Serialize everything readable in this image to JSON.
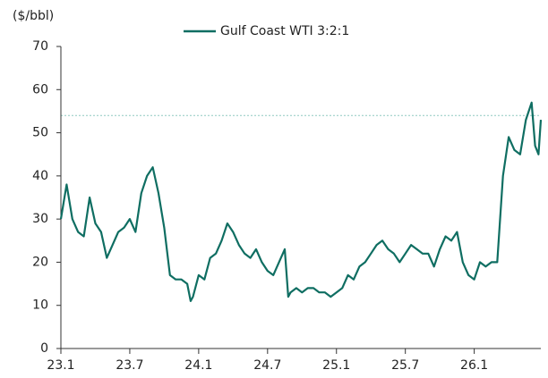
{
  "chart_data": {
    "type": "line",
    "y_label": "($/bbl)",
    "x": [
      0,
      0.5,
      1,
      1.5,
      2,
      2.5,
      3,
      3.5,
      4,
      4.5,
      5,
      5.5,
      6,
      6.5,
      7,
      7.5,
      8,
      8.5,
      9,
      9.5,
      10,
      10.5,
      11,
      11.3,
      11.5,
      12,
      12.5,
      13,
      13.5,
      14,
      14.5,
      15,
      15.5,
      16,
      16.5,
      17,
      17.5,
      18,
      18.5,
      19,
      19.5,
      19.8,
      20,
      20.5,
      21,
      21.5,
      22,
      22.5,
      23,
      23.5,
      24,
      24.5,
      25,
      25.5,
      26,
      26.5,
      27,
      27.5,
      28,
      28.5,
      29,
      29.5,
      30,
      30.5,
      31,
      31.5,
      32,
      32.5,
      33,
      33.5,
      34,
      34.5,
      35,
      35.5,
      36,
      36.5,
      37,
      37.5,
      38,
      38.5,
      39,
      39.5,
      40,
      40.5,
      41,
      41.3,
      41.6,
      41.8
    ],
    "series": [
      {
        "name": "Gulf Coast WTI 3:2:1",
        "color": "#0f6e62",
        "values": [
          30,
          38,
          30,
          27,
          26,
          35,
          29,
          27,
          21,
          24,
          27,
          28,
          30,
          27,
          36,
          40,
          42,
          36,
          28,
          17,
          16,
          16,
          15,
          11,
          12,
          17,
          16,
          21,
          22,
          25,
          29,
          27,
          24,
          22,
          21,
          23,
          20,
          18,
          17,
          20,
          23,
          12,
          13,
          14,
          13,
          14,
          14,
          13,
          13,
          12,
          13,
          14,
          17,
          16,
          19,
          20,
          22,
          24,
          25,
          23,
          22,
          20,
          22,
          24,
          23,
          22,
          22,
          19,
          23,
          26,
          25,
          27,
          20,
          17,
          16,
          20,
          19,
          20,
          20,
          40,
          49,
          46,
          45,
          53,
          57,
          47,
          45,
          53
        ]
      }
    ],
    "xlim": [
      0,
      41.8
    ],
    "xticks": [
      {
        "value": 0,
        "label": "23.1"
      },
      {
        "value": 6,
        "label": "23.7"
      },
      {
        "value": 12,
        "label": "24.1"
      },
      {
        "value": 18,
        "label": "24.7"
      },
      {
        "value": 24,
        "label": "25.1"
      },
      {
        "value": 30,
        "label": "25.7"
      },
      {
        "value": 36,
        "label": "26.1"
      }
    ],
    "ylim": [
      0,
      70
    ],
    "yticks": [
      0,
      10,
      20,
      30,
      40,
      50,
      60,
      70
    ],
    "hline": {
      "value": 54,
      "color": "#8fc9c0"
    },
    "grid": false,
    "legend": "top"
  }
}
